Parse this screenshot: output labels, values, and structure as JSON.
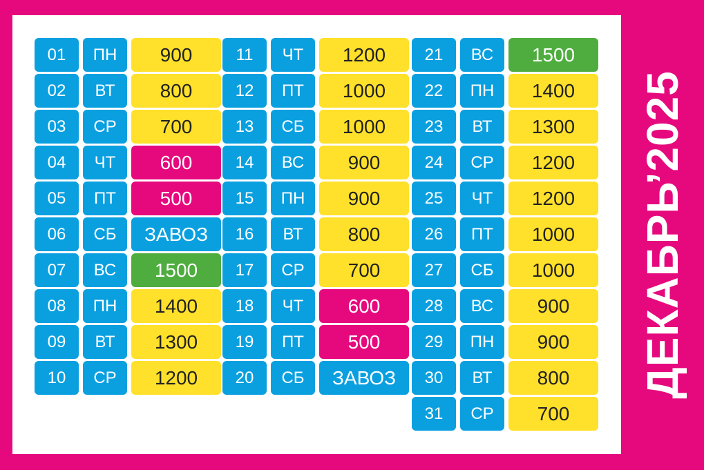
{
  "title": "ДЕКАБРЬ’2025",
  "colors": {
    "background": "#e6097e",
    "panel": "#ffffff",
    "day_cell": "#0aa0e0",
    "yellow": "#ffe02a",
    "pink": "#e6097e",
    "green": "#4fad3f",
    "blue": "#0aa0e0"
  },
  "columns": [
    [
      {
        "day": "01",
        "dow": "ПН",
        "value": "900",
        "color": "yellow"
      },
      {
        "day": "02",
        "dow": "ВТ",
        "value": "800",
        "color": "yellow"
      },
      {
        "day": "03",
        "dow": "СР",
        "value": "700",
        "color": "yellow"
      },
      {
        "day": "04",
        "dow": "ЧТ",
        "value": "600",
        "color": "pink"
      },
      {
        "day": "05",
        "dow": "ПТ",
        "value": "500",
        "color": "pink"
      },
      {
        "day": "06",
        "dow": "СБ",
        "value": "ЗАВОЗ",
        "color": "blue"
      },
      {
        "day": "07",
        "dow": "ВС",
        "value": "1500",
        "color": "green"
      },
      {
        "day": "08",
        "dow": "ПН",
        "value": "1400",
        "color": "yellow"
      },
      {
        "day": "09",
        "dow": "ВТ",
        "value": "1300",
        "color": "yellow"
      },
      {
        "day": "10",
        "dow": "СР",
        "value": "1200",
        "color": "yellow"
      }
    ],
    [
      {
        "day": "11",
        "dow": "ЧТ",
        "value": "1200",
        "color": "yellow"
      },
      {
        "day": "12",
        "dow": "ПТ",
        "value": "1000",
        "color": "yellow"
      },
      {
        "day": "13",
        "dow": "СБ",
        "value": "1000",
        "color": "yellow"
      },
      {
        "day": "14",
        "dow": "ВС",
        "value": "900",
        "color": "yellow"
      },
      {
        "day": "15",
        "dow": "ПН",
        "value": "900",
        "color": "yellow"
      },
      {
        "day": "16",
        "dow": "ВТ",
        "value": "800",
        "color": "yellow"
      },
      {
        "day": "17",
        "dow": "СР",
        "value": "700",
        "color": "yellow"
      },
      {
        "day": "18",
        "dow": "ЧТ",
        "value": "600",
        "color": "pink"
      },
      {
        "day": "19",
        "dow": "ПТ",
        "value": "500",
        "color": "pink"
      },
      {
        "day": "20",
        "dow": "СБ",
        "value": "ЗАВОЗ",
        "color": "blue"
      }
    ],
    [
      {
        "day": "21",
        "dow": "ВС",
        "value": "1500",
        "color": "green"
      },
      {
        "day": "22",
        "dow": "ПН",
        "value": "1400",
        "color": "yellow"
      },
      {
        "day": "23",
        "dow": "ВТ",
        "value": "1300",
        "color": "yellow"
      },
      {
        "day": "24",
        "dow": "СР",
        "value": "1200",
        "color": "yellow"
      },
      {
        "day": "25",
        "dow": "ЧТ",
        "value": "1200",
        "color": "yellow"
      },
      {
        "day": "26",
        "dow": "ПТ",
        "value": "1000",
        "color": "yellow"
      },
      {
        "day": "27",
        "dow": "СБ",
        "value": "1000",
        "color": "yellow"
      },
      {
        "day": "28",
        "dow": "ВС",
        "value": "900",
        "color": "yellow"
      },
      {
        "day": "29",
        "dow": "ПН",
        "value": "900",
        "color": "yellow"
      },
      {
        "day": "30",
        "dow": "ВТ",
        "value": "800",
        "color": "yellow"
      },
      {
        "day": "31",
        "dow": "СР",
        "value": "700",
        "color": "yellow"
      }
    ]
  ]
}
